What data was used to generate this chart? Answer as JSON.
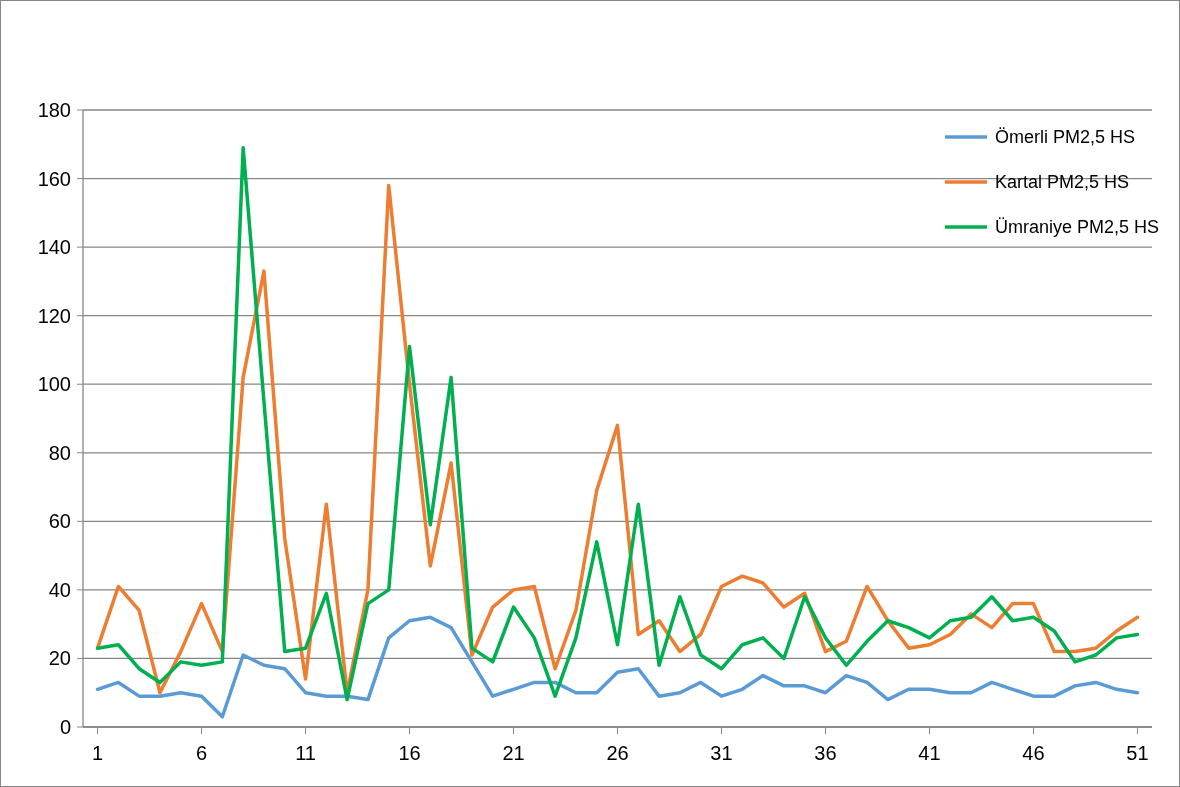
{
  "chart_data": {
    "type": "line",
    "x": [
      1,
      2,
      3,
      4,
      5,
      6,
      7,
      8,
      9,
      10,
      11,
      12,
      13,
      14,
      15,
      16,
      17,
      18,
      19,
      20,
      21,
      22,
      23,
      24,
      25,
      26,
      27,
      28,
      29,
      30,
      31,
      32,
      33,
      34,
      35,
      36,
      37,
      38,
      39,
      40,
      41,
      42,
      43,
      44,
      45,
      46,
      47,
      48,
      49,
      50,
      51
    ],
    "series": [
      {
        "name": "Ömerli PM2,5 HS",
        "color": "#5b9bd5",
        "values": [
          11,
          13,
          9,
          9,
          10,
          9,
          3,
          21,
          18,
          17,
          10,
          9,
          9,
          8,
          26,
          31,
          32,
          29,
          19,
          9,
          11,
          13,
          13,
          10,
          10,
          16,
          17,
          9,
          10,
          13,
          9,
          11,
          15,
          12,
          12,
          10,
          15,
          13,
          8,
          11,
          11,
          10,
          10,
          13,
          11,
          9,
          9,
          12,
          13,
          11,
          10
        ]
      },
      {
        "name": "Kartal PM2,5 HS",
        "color": "#ed7d31",
        "values": [
          23,
          41,
          34,
          10,
          22,
          36,
          22,
          102,
          133,
          55,
          14,
          65,
          10,
          40,
          158,
          100,
          47,
          77,
          21,
          35,
          40,
          41,
          17,
          34,
          69,
          88,
          27,
          31,
          22,
          27,
          41,
          44,
          42,
          35,
          39,
          22,
          25,
          41,
          31,
          23,
          24,
          27,
          33,
          29,
          36,
          36,
          22,
          22,
          23,
          28,
          32
        ]
      },
      {
        "name": "Ümraniye PM2,5 HS",
        "color": "#00b050",
        "values": [
          23,
          24,
          17,
          13,
          19,
          18,
          19,
          169,
          95,
          22,
          23,
          39,
          8,
          36,
          40,
          111,
          59,
          102,
          23,
          19,
          35,
          26,
          9,
          26,
          54,
          24,
          65,
          18,
          38,
          21,
          17,
          24,
          26,
          20,
          38,
          26,
          18,
          25,
          31,
          29,
          26,
          31,
          32,
          38,
          31,
          32,
          28,
          19,
          21,
          26,
          27
        ]
      }
    ],
    "xlim": [
      0.3,
      51.7
    ],
    "xticks": [
      1,
      6,
      11,
      16,
      21,
      26,
      31,
      36,
      41,
      46,
      51
    ],
    "ylim": [
      0,
      180
    ],
    "yticks": [
      0,
      20,
      40,
      60,
      80,
      100,
      120,
      140,
      160,
      180
    ],
    "grid": "y",
    "legend": "top right",
    "marker": "none",
    "line_style": "solid"
  }
}
